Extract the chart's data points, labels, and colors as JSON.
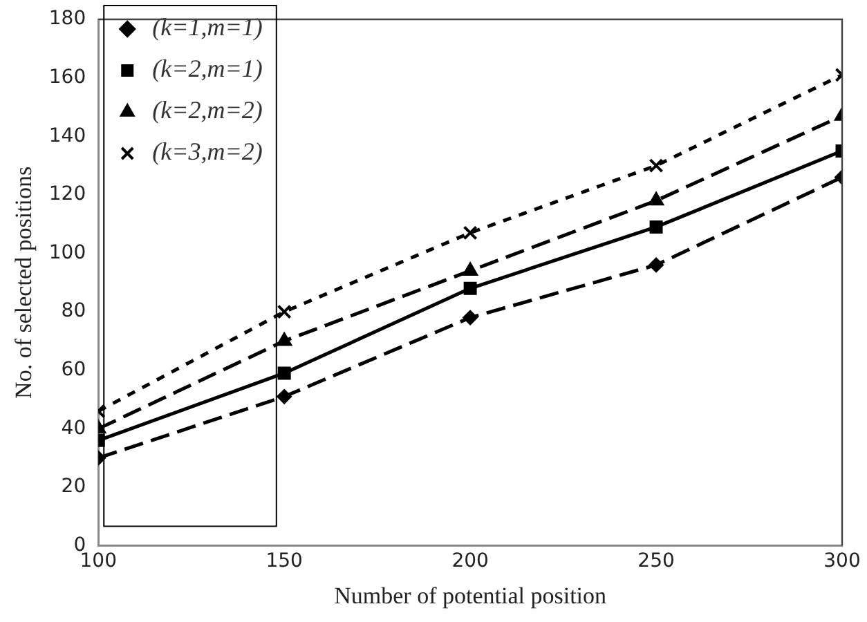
{
  "chart_data": {
    "type": "line",
    "xlabel": "Number of potential position",
    "ylabel": "No. of selected positions",
    "x": [
      100,
      150,
      200,
      250,
      300
    ],
    "xlim": [
      100,
      300
    ],
    "xticks": [
      100,
      150,
      200,
      250,
      300
    ],
    "ylim": [
      0,
      180
    ],
    "yticks": [
      0,
      20,
      40,
      60,
      80,
      100,
      120,
      140,
      160,
      180
    ],
    "grid": false,
    "legend": "top left",
    "series": [
      {
        "name": "(k=1,m=1)",
        "color": "#000000",
        "marker": "diamond",
        "line_style": "dashed",
        "values": [
          30,
          51,
          78,
          96,
          126
        ]
      },
      {
        "name": "(k=2,m=1)",
        "color": "#000000",
        "marker": "square",
        "line_style": "solid",
        "values": [
          36,
          59,
          88,
          109,
          135
        ]
      },
      {
        "name": "(k=2,m=2)",
        "color": "#000000",
        "marker": "triangle",
        "line_style": "dashed",
        "values": [
          40,
          70,
          94,
          118,
          147
        ]
      },
      {
        "name": "(k=3,m=2)",
        "color": "#000000",
        "marker": "cross",
        "line_style": "dashed",
        "values": [
          46,
          80,
          107,
          130,
          161
        ]
      }
    ]
  }
}
